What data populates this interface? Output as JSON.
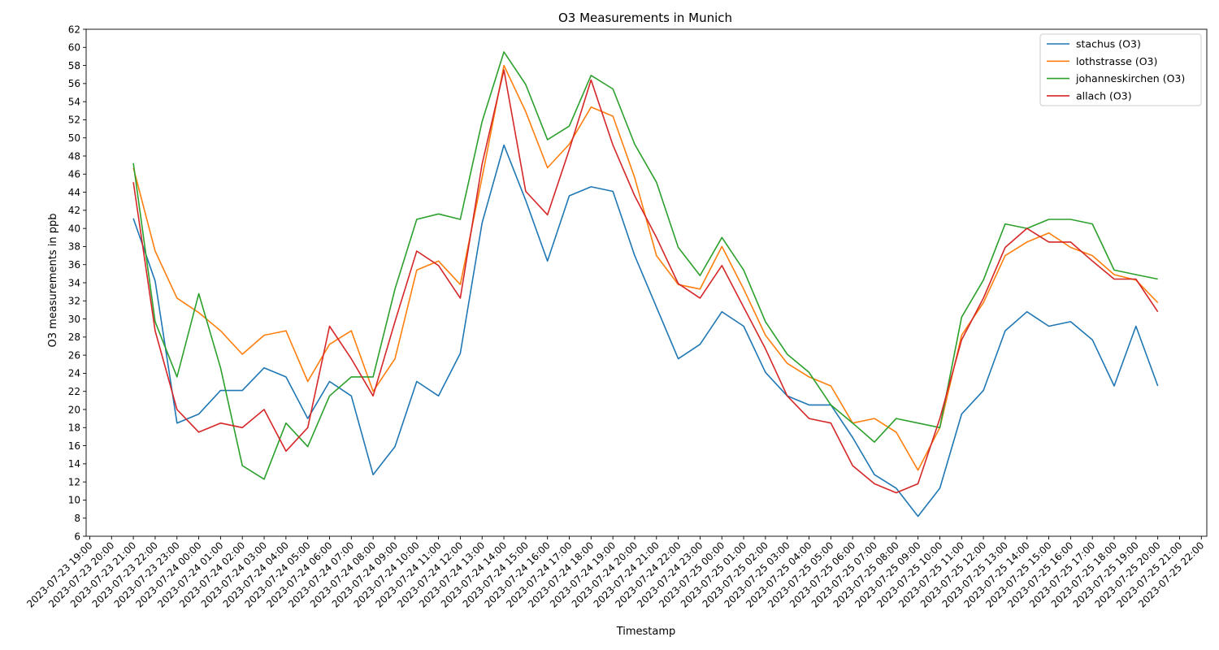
{
  "chart_data": {
    "type": "line",
    "title": "O3 Measurements in Munich",
    "xlabel": "Timestamp",
    "ylabel": "O3 measurements in ppb",
    "ylim": [
      6,
      62
    ],
    "yticks": [
      6,
      8,
      10,
      12,
      14,
      16,
      18,
      20,
      22,
      24,
      26,
      28,
      30,
      32,
      34,
      36,
      38,
      40,
      42,
      44,
      46,
      48,
      50,
      52,
      54,
      56,
      58,
      60,
      62
    ],
    "xlim": [
      "2023-07-23 18:50",
      "2023-07-25 22:15"
    ],
    "xticks": [
      "2023-07-23 19:00",
      "2023-07-23 20:00",
      "2023-07-23 21:00",
      "2023-07-23 22:00",
      "2023-07-23 23:00",
      "2023-07-24 00:00",
      "2023-07-24 01:00",
      "2023-07-24 02:00",
      "2023-07-24 03:00",
      "2023-07-24 04:00",
      "2023-07-24 05:00",
      "2023-07-24 06:00",
      "2023-07-24 07:00",
      "2023-07-24 08:00",
      "2023-07-24 09:00",
      "2023-07-24 10:00",
      "2023-07-24 11:00",
      "2023-07-24 12:00",
      "2023-07-24 13:00",
      "2023-07-24 14:00",
      "2023-07-24 15:00",
      "2023-07-24 16:00",
      "2023-07-24 17:00",
      "2023-07-24 18:00",
      "2023-07-24 19:00",
      "2023-07-24 20:00",
      "2023-07-24 21:00",
      "2023-07-24 22:00",
      "2023-07-24 23:00",
      "2023-07-25 00:00",
      "2023-07-25 01:00",
      "2023-07-25 02:00",
      "2023-07-25 03:00",
      "2023-07-25 04:00",
      "2023-07-25 05:00",
      "2023-07-25 06:00",
      "2023-07-25 07:00",
      "2023-07-25 08:00",
      "2023-07-25 09:00",
      "2023-07-25 10:00",
      "2023-07-25 11:00",
      "2023-07-25 12:00",
      "2023-07-25 13:00",
      "2023-07-25 14:00",
      "2023-07-25 15:00",
      "2023-07-25 16:00",
      "2023-07-25 17:00",
      "2023-07-25 18:00",
      "2023-07-25 19:00",
      "2023-07-25 20:00",
      "2023-07-25 21:00",
      "2023-07-25 22:00"
    ],
    "x": [
      "2023-07-23 21:00",
      "2023-07-23 22:00",
      "2023-07-23 23:00",
      "2023-07-24 00:00",
      "2023-07-24 01:00",
      "2023-07-24 02:00",
      "2023-07-24 03:00",
      "2023-07-24 04:00",
      "2023-07-24 05:00",
      "2023-07-24 06:00",
      "2023-07-24 07:00",
      "2023-07-24 08:00",
      "2023-07-24 09:00",
      "2023-07-24 10:00",
      "2023-07-24 11:00",
      "2023-07-24 12:00",
      "2023-07-24 13:00",
      "2023-07-24 14:00",
      "2023-07-24 15:00",
      "2023-07-24 16:00",
      "2023-07-24 17:00",
      "2023-07-24 18:00",
      "2023-07-24 19:00",
      "2023-07-24 20:00",
      "2023-07-24 21:00",
      "2023-07-24 22:00",
      "2023-07-24 23:00",
      "2023-07-25 00:00",
      "2023-07-25 01:00",
      "2023-07-25 02:00",
      "2023-07-25 03:00",
      "2023-07-25 04:00",
      "2023-07-25 05:00",
      "2023-07-25 06:00",
      "2023-07-25 07:00",
      "2023-07-25 08:00",
      "2023-07-25 09:00",
      "2023-07-25 10:00",
      "2023-07-25 11:00",
      "2023-07-25 12:00",
      "2023-07-25 13:00",
      "2023-07-25 14:00",
      "2023-07-25 15:00",
      "2023-07-25 16:00",
      "2023-07-25 17:00",
      "2023-07-25 18:00",
      "2023-07-25 19:00",
      "2023-07-25 20:00"
    ],
    "series": [
      {
        "name": "stachus (O3)",
        "color": "#1f77b4",
        "values": [
          41.1,
          34.2,
          18.5,
          19.5,
          22.1,
          22.1,
          24.6,
          23.6,
          19.0,
          23.1,
          21.5,
          12.8,
          15.9,
          23.1,
          21.5,
          26.2,
          40.6,
          49.2,
          43.1,
          36.4,
          43.6,
          44.6,
          44.1,
          37.0,
          31.3,
          25.6,
          27.2,
          30.8,
          29.2,
          24.1,
          21.5,
          20.5,
          20.5,
          16.9,
          12.8,
          11.3,
          8.2,
          11.3,
          19.5,
          22.1,
          28.7,
          30.8,
          29.2,
          29.7,
          27.7,
          22.6,
          29.2,
          22.6
        ]
      },
      {
        "name": "lothstrasse (O3)",
        "color": "#ff7f0e",
        "values": [
          46.7,
          37.5,
          32.3,
          30.7,
          28.7,
          26.1,
          28.2,
          28.7,
          23.1,
          27.2,
          28.7,
          22.0,
          25.6,
          35.4,
          36.4,
          33.8,
          45.6,
          58.0,
          52.9,
          46.7,
          49.3,
          53.4,
          52.4,
          45.6,
          37.0,
          33.8,
          33.3,
          38.0,
          33.3,
          28.2,
          25.1,
          23.6,
          22.6,
          18.5,
          19.0,
          17.5,
          13.3,
          18.0,
          28.2,
          31.8,
          37.0,
          38.5,
          39.5,
          37.9,
          37.0,
          34.9,
          34.3,
          31.8
        ]
      },
      {
        "name": "johanneskirchen (O3)",
        "color": "#2ca02c",
        "values": [
          47.2,
          29.7,
          23.6,
          32.8,
          24.6,
          13.8,
          12.3,
          18.5,
          15.9,
          21.5,
          23.6,
          23.6,
          33.3,
          41.0,
          41.6,
          41.0,
          51.8,
          59.5,
          55.9,
          49.8,
          51.3,
          56.9,
          55.4,
          49.3,
          45.1,
          37.9,
          34.8,
          39.0,
          35.4,
          29.7,
          26.1,
          24.1,
          20.5,
          18.5,
          16.4,
          19.0,
          18.5,
          18.0,
          30.2,
          34.3,
          40.5,
          40.0,
          41.0,
          41.0,
          40.5,
          35.4,
          34.9,
          34.4
        ]
      },
      {
        "name": "allach (O3)",
        "color": "#d62728",
        "values": [
          45.1,
          28.7,
          20.0,
          17.5,
          18.5,
          18.0,
          20.0,
          15.4,
          18.0,
          29.2,
          25.6,
          21.5,
          29.7,
          37.5,
          35.9,
          32.3,
          47.1,
          57.5,
          44.1,
          41.5,
          48.7,
          56.4,
          49.2,
          43.6,
          39.0,
          33.9,
          32.3,
          35.9,
          31.3,
          26.7,
          21.5,
          19.0,
          18.5,
          13.8,
          11.8,
          10.8,
          11.8,
          19.0,
          27.7,
          32.3,
          37.9,
          40.0,
          38.5,
          38.5,
          36.4,
          34.4,
          34.4,
          30.8
        ]
      }
    ],
    "grid": false,
    "legend_position": "top-right"
  }
}
